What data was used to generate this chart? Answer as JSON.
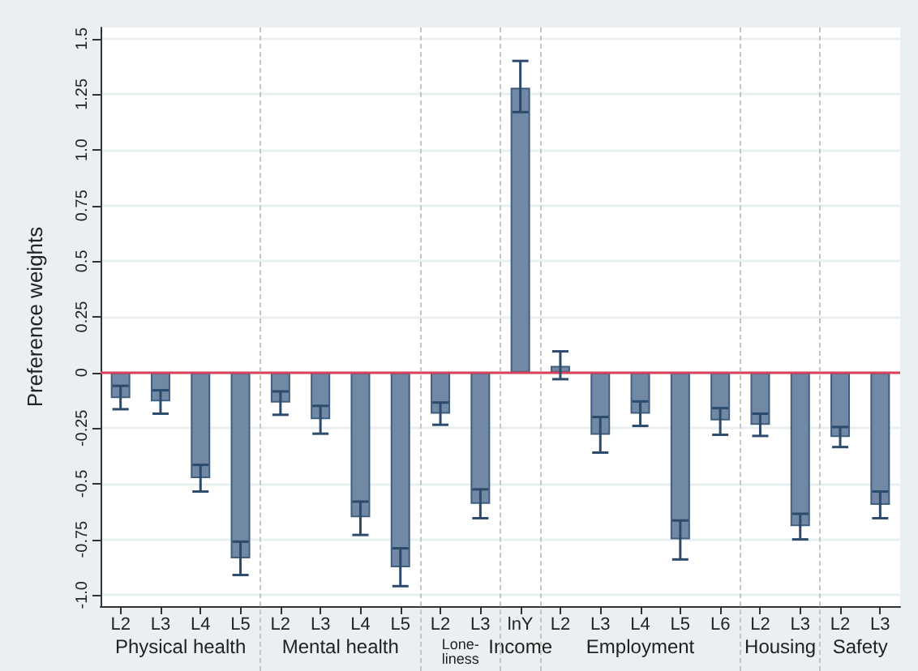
{
  "chart_data": {
    "type": "bar",
    "ylabel": "Preference weights",
    "categories": [
      "L2",
      "L3",
      "L4",
      "L5",
      "L2",
      "L3",
      "L4",
      "L5",
      "L2",
      "L3",
      "lnY",
      "L2",
      "L3",
      "L4",
      "L5",
      "L6",
      "L2",
      "L3",
      "L2",
      "L3"
    ],
    "values": [
      -0.115,
      -0.13,
      -0.475,
      -0.835,
      -0.135,
      -0.21,
      -0.65,
      -0.875,
      -0.185,
      -0.59,
      1.28,
      0.03,
      -0.28,
      -0.185,
      -0.75,
      -0.215,
      -0.235,
      -0.69,
      -0.29,
      -0.595
    ],
    "errors": [
      [
        -0.165,
        -0.06
      ],
      [
        -0.185,
        -0.08
      ],
      [
        -0.535,
        -0.415
      ],
      [
        -0.91,
        -0.76
      ],
      [
        -0.19,
        -0.085
      ],
      [
        -0.275,
        -0.15
      ],
      [
        -0.73,
        -0.58
      ],
      [
        -0.96,
        -0.79
      ],
      [
        -0.235,
        -0.135
      ],
      [
        -0.655,
        -0.525
      ],
      [
        1.17,
        1.4
      ],
      [
        -0.03,
        0.095
      ],
      [
        -0.36,
        -0.2
      ],
      [
        -0.24,
        -0.13
      ],
      [
        -0.84,
        -0.665
      ],
      [
        -0.28,
        -0.16
      ],
      [
        -0.285,
        -0.185
      ],
      [
        -0.75,
        -0.635
      ],
      [
        -0.335,
        -0.245
      ],
      [
        -0.655,
        -0.535
      ]
    ],
    "color": "#7189a4",
    "ylim": [
      -1.05,
      1.55
    ],
    "yticks": [
      {
        "value": -1,
        "label": "-1.0"
      },
      -0.75,
      -0.5,
      -0.25,
      0,
      0.25,
      0.5,
      0.75,
      {
        "value": 1,
        "label": "1.0"
      },
      1.25,
      1.5
    ],
    "grid": "y",
    "ref_lines": [
      {
        "axis": "y",
        "value": 0,
        "color": "#d9415c",
        "line_style": "solid"
      }
    ],
    "annotations": [
      "Physical health",
      "Mental health",
      "Lone-\nliness",
      "Income",
      "Employment",
      "Housing",
      "Safety"
    ]
  }
}
